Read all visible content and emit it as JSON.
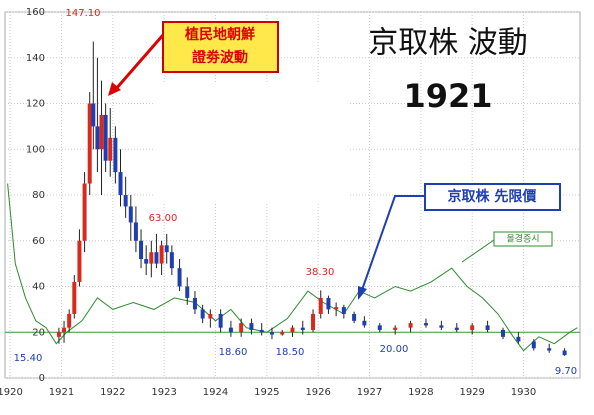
{
  "chart_data": {
    "type": "candlestick",
    "title": "京取株 波動",
    "subtitle": "1921",
    "series_label": "京取株 先限價",
    "box_label": [
      "植民地朝鮮",
      "證劵波動"
    ],
    "up_color": "#d9291c",
    "down_color": "#1f3fb0",
    "x": [
      1920.95,
      1921.05,
      1921.15,
      1921.25,
      1921.35,
      1921.45,
      1921.55,
      1921.62,
      1921.7,
      1921.78,
      1921.86,
      1921.95,
      1922.05,
      1922.15,
      1922.25,
      1922.35,
      1922.45,
      1922.55,
      1922.65,
      1922.75,
      1922.85,
      1922.95,
      1923.05,
      1923.15,
      1923.3,
      1923.45,
      1923.6,
      1923.75,
      1923.9,
      1924.1,
      1924.3,
      1924.5,
      1924.7,
      1924.9,
      1925.1,
      1925.3,
      1925.5,
      1925.7,
      1925.9,
      1926.05,
      1926.2,
      1926.35,
      1926.5,
      1926.7,
      1926.9,
      1927.2,
      1927.5,
      1927.8,
      1928.1,
      1928.4,
      1928.7,
      1929.0,
      1929.3,
      1929.6,
      1929.9,
      1930.2,
      1930.5,
      1930.8
    ],
    "open": [
      18,
      20,
      22,
      28,
      42,
      60,
      85,
      120,
      110,
      100,
      115,
      95,
      105,
      90,
      80,
      75,
      68,
      60,
      52,
      50,
      55,
      50,
      58,
      55,
      48,
      40,
      35,
      30,
      26,
      28,
      22,
      20,
      24,
      21,
      20,
      19,
      20,
      22,
      21,
      28,
      35,
      30,
      31,
      28,
      25,
      23,
      21,
      22,
      24,
      23,
      22,
      21,
      23,
      21,
      18,
      16,
      13,
      12
    ],
    "high": [
      22,
      25,
      30,
      45,
      65,
      90,
      125,
      147.1,
      140,
      130,
      120,
      118,
      110,
      100,
      88,
      80,
      75,
      65,
      58,
      60,
      63,
      60,
      63,
      58,
      52,
      44,
      38,
      32,
      30,
      30,
      25,
      26,
      26,
      24,
      22,
      21,
      23,
      25,
      30,
      38.3,
      36,
      33,
      32,
      29,
      27,
      24,
      23,
      25,
      26,
      25,
      24,
      24,
      25,
      22,
      20,
      17,
      15,
      13
    ],
    "low": [
      15,
      15.4,
      20,
      26,
      40,
      55,
      80,
      100,
      90,
      80,
      90,
      88,
      85,
      75,
      70,
      60,
      55,
      48,
      45,
      44,
      48,
      45,
      50,
      45,
      38,
      32,
      28,
      24,
      22,
      20,
      18,
      18,
      19,
      18.6,
      17,
      18.5,
      18,
      19,
      20,
      26,
      28,
      27,
      26,
      24,
      22,
      20,
      19,
      20,
      22,
      21,
      20,
      19,
      20,
      17,
      15,
      12,
      11,
      9.7
    ],
    "close": [
      20,
      22,
      28,
      42,
      60,
      85,
      120,
      110,
      100,
      115,
      95,
      105,
      90,
      80,
      75,
      68,
      60,
      52,
      50,
      55,
      50,
      58,
      55,
      48,
      40,
      35,
      30,
      26,
      28,
      22,
      20,
      24,
      21,
      20,
      19,
      20,
      22,
      21,
      28,
      35,
      30,
      31,
      28,
      25,
      23,
      21,
      22,
      24,
      23,
      22,
      21,
      23,
      21,
      18,
      16,
      13,
      12,
      10
    ],
    "comparison": {
      "name": "올경증시",
      "color": "#2e8b2e",
      "x": [
        1919.95,
        1920.1,
        1920.3,
        1920.5,
        1920.7,
        1920.9,
        1921.1,
        1921.4,
        1921.7,
        1922.0,
        1922.4,
        1922.8,
        1923.2,
        1923.6,
        1924.0,
        1924.3,
        1924.6,
        1925.0,
        1925.4,
        1925.8,
        1926.1,
        1926.5,
        1926.8,
        1927.1,
        1927.5,
        1927.8,
        1928.2,
        1928.6,
        1928.9,
        1929.2,
        1929.5,
        1929.8,
        1930.0,
        1930.3,
        1930.6,
        1930.9,
        1931.05
      ],
      "values": [
        85,
        50,
        35,
        25,
        22,
        15,
        20,
        25,
        35,
        30,
        33,
        30,
        35,
        33,
        25,
        30,
        22,
        20,
        26,
        38,
        33,
        28,
        38,
        35,
        40,
        38,
        42,
        48,
        40,
        35,
        28,
        18,
        12,
        18,
        15,
        20,
        22
      ]
    },
    "reference_line": 20,
    "annotations": [
      "147.10",
      "63.00",
      "38.30",
      "15.40",
      "18.60",
      "18.50",
      "20.00",
      "9.70"
    ],
    "xlim": [
      1919.9,
      1931.1
    ],
    "ylim": [
      0,
      160
    ],
    "xticks": [
      1920,
      1921,
      1922,
      1923,
      1924,
      1925,
      1926,
      1927,
      1928,
      1929,
      1930
    ],
    "yticks": [
      0,
      20,
      40,
      60,
      80,
      100,
      120,
      140,
      160
    ],
    "grid": true
  }
}
